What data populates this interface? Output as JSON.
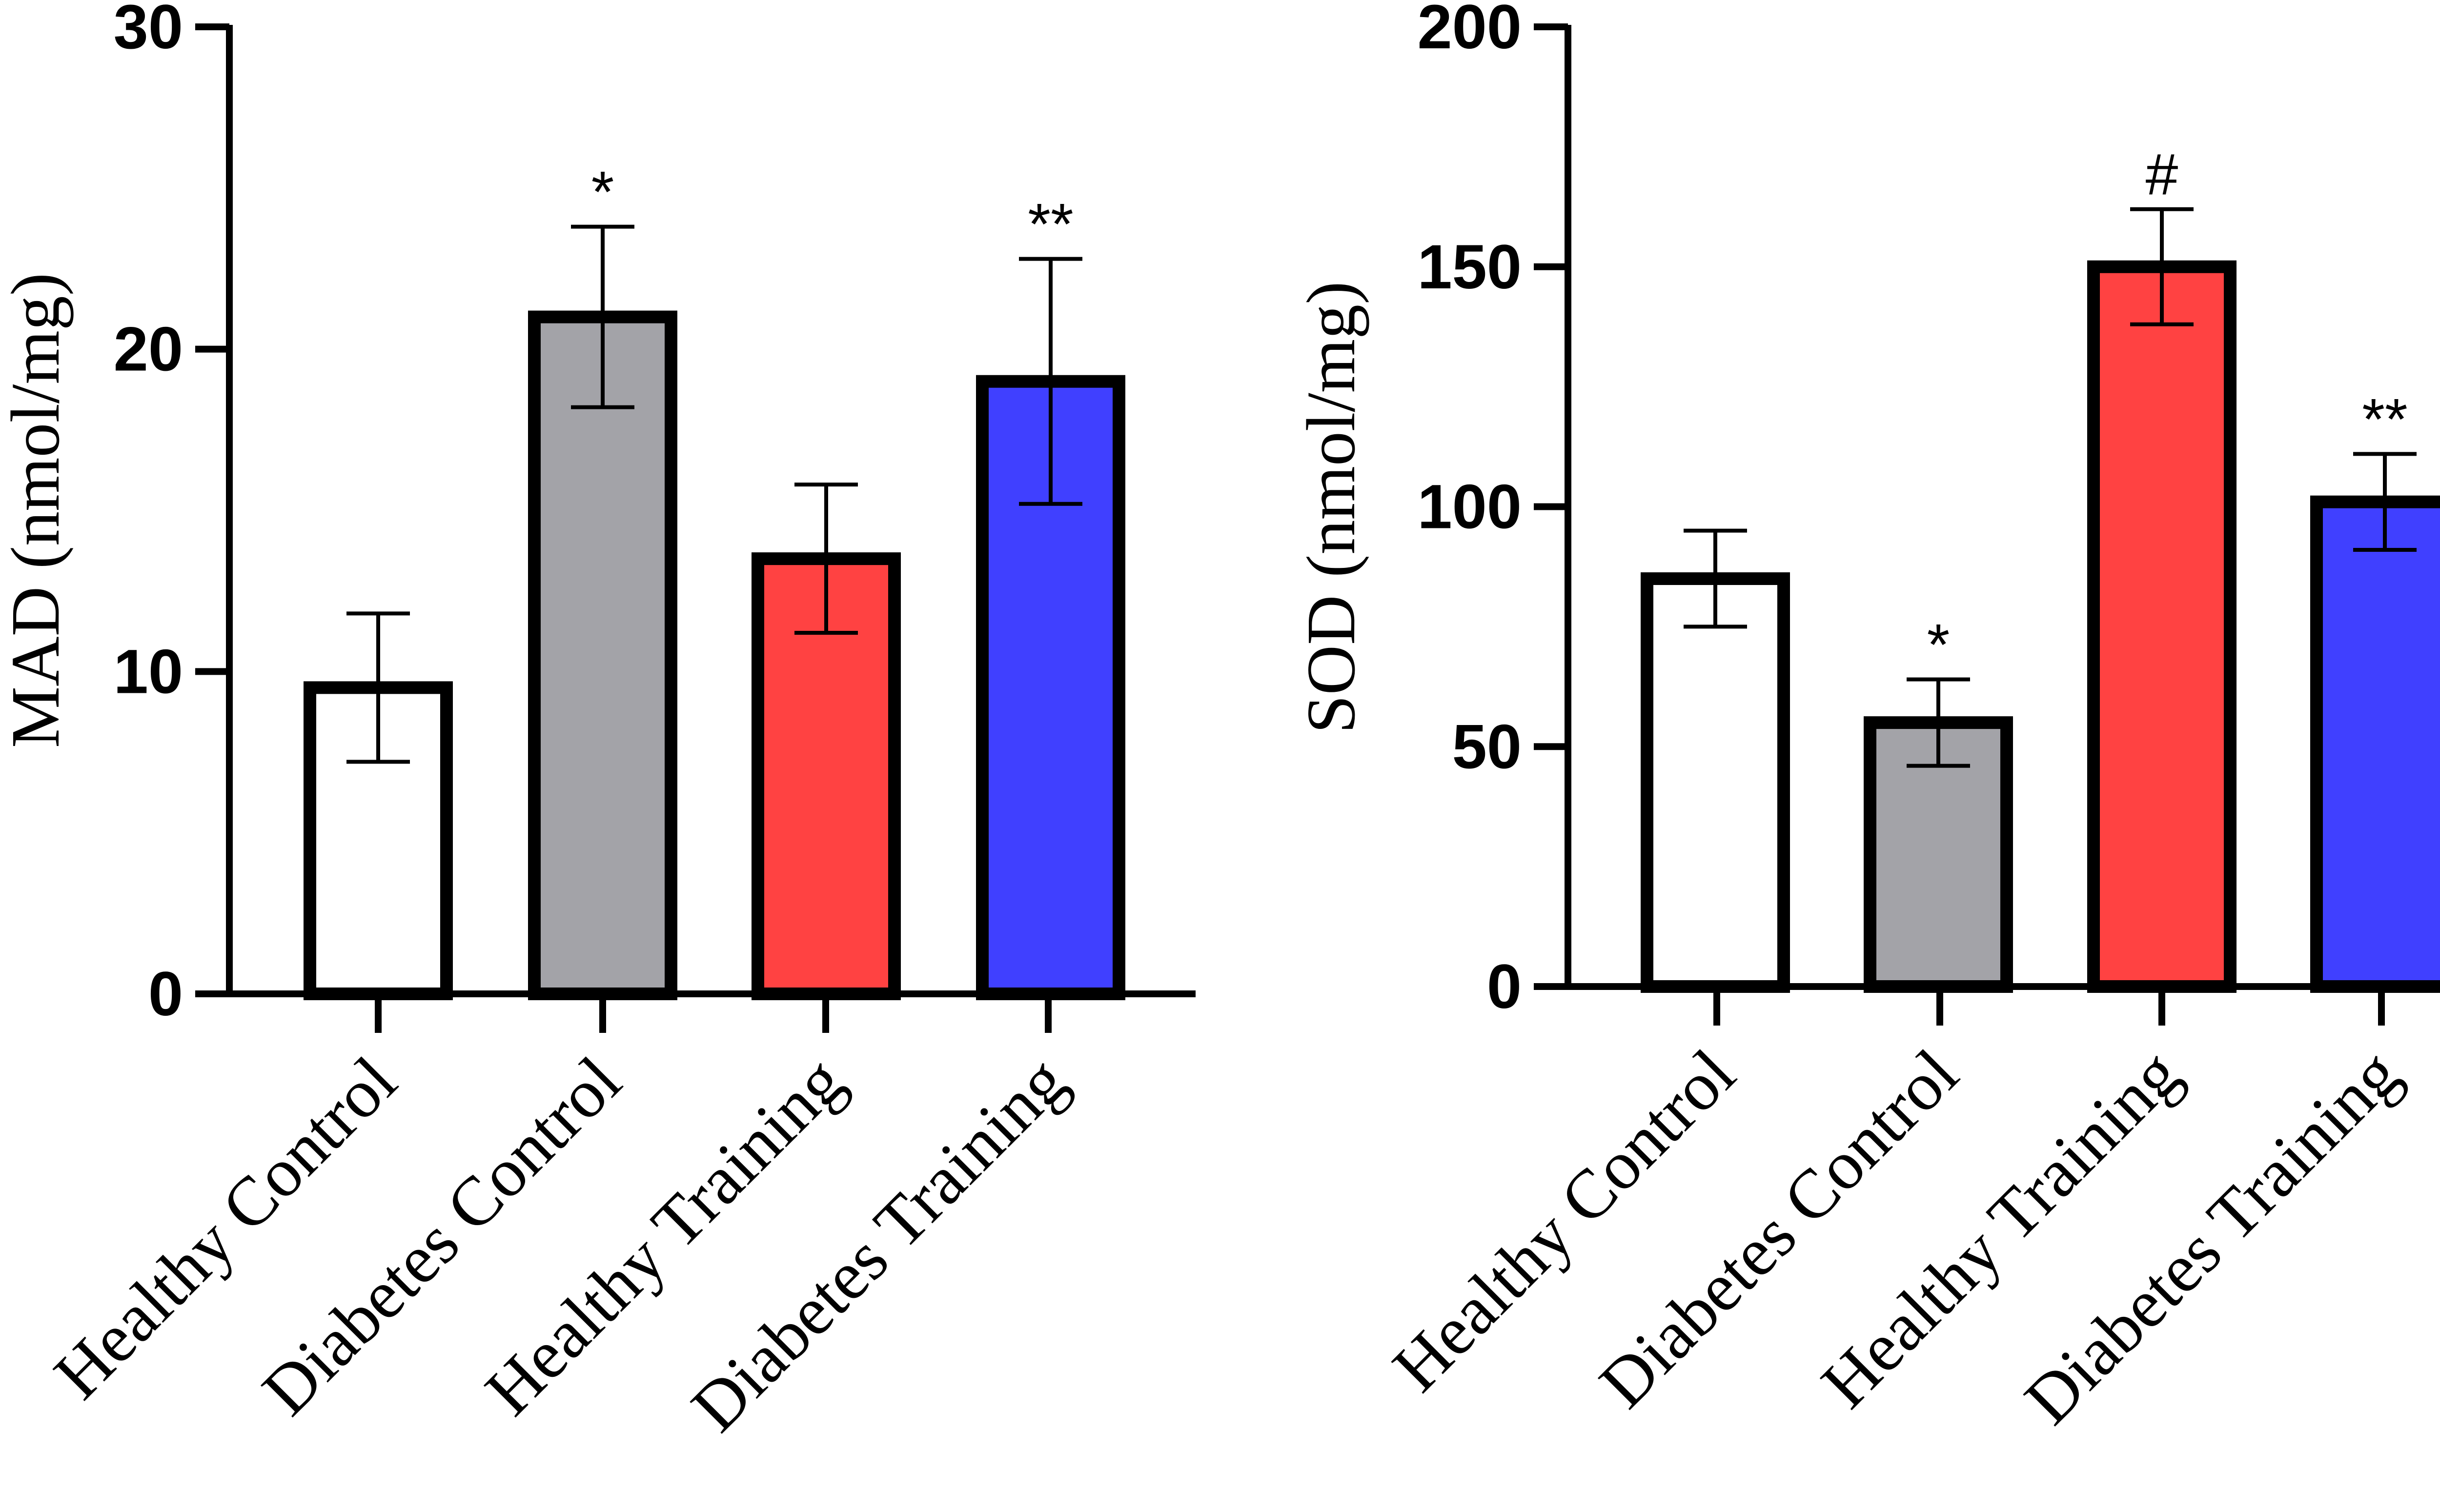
{
  "chart_data": [
    {
      "type": "bar",
      "categories": [
        "Healthy Control",
        "Diabetes Control",
        "Healthy Training",
        "Diabetes Training"
      ],
      "values": [
        9.5,
        21,
        13.5,
        19
      ],
      "error": [
        2.3,
        2.8,
        2.3,
        3.8
      ],
      "significance": [
        "",
        "*",
        "",
        "**"
      ],
      "colors": [
        "#ffffff",
        "#a3a3a8",
        "#ff4242",
        "#4040ff"
      ],
      "title": "",
      "xlabel": "",
      "ylabel": "MAD (nmol/mg)",
      "ylim": [
        0,
        30
      ],
      "yticks": [
        0,
        10,
        20,
        30
      ],
      "grid": false
    },
    {
      "type": "bar",
      "categories": [
        "Healthy Control",
        "Diabetes Control",
        "Healthy Training",
        "Diabetes Training"
      ],
      "values": [
        85,
        55,
        150,
        101
      ],
      "error": [
        10,
        9,
        12,
        10
      ],
      "significance": [
        "",
        "*",
        "#",
        "**"
      ],
      "colors": [
        "#ffffff",
        "#a3a3a8",
        "#ff4242",
        "#4040ff"
      ],
      "title": "",
      "xlabel": "",
      "ylabel": "SOD (nmol/mg)",
      "ylim": [
        0,
        200
      ],
      "yticks": [
        0,
        50,
        100,
        150,
        200
      ],
      "grid": false
    }
  ]
}
